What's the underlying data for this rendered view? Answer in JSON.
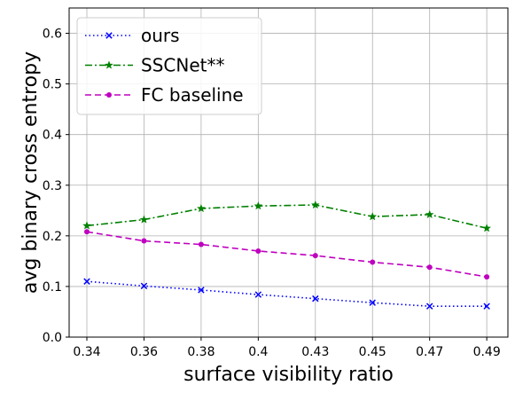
{
  "chart_data": {
    "type": "line",
    "xlabel": "surface visibility ratio",
    "ylabel": "avg binary cross entropy",
    "categories": [
      "0.34",
      "0.36",
      "0.38",
      "0.4",
      "0.43",
      "0.45",
      "0.47",
      "0.49"
    ],
    "ylim": [
      0.0,
      0.65
    ],
    "yticks": [
      "0.0",
      "0.1",
      "0.2",
      "0.3",
      "0.4",
      "0.5",
      "0.6"
    ],
    "grid": true,
    "legend_position": "top-left",
    "series": [
      {
        "name": "ours",
        "color": "#0000ff",
        "linestyle": "dotted",
        "marker": "x",
        "values": [
          0.11,
          0.101,
          0.093,
          0.084,
          0.076,
          0.068,
          0.061,
          0.061
        ]
      },
      {
        "name": "SSCNet**",
        "color": "#008000",
        "linestyle": "dashdot",
        "marker": "star",
        "values": [
          0.22,
          0.232,
          0.254,
          0.259,
          0.261,
          0.238,
          0.242,
          0.215
        ]
      },
      {
        "name": "FC baseline",
        "color": "#bf00bf",
        "linestyle": "dashed",
        "marker": "circle",
        "values": [
          0.208,
          0.19,
          0.183,
          0.17,
          0.161,
          0.148,
          0.138,
          0.119
        ]
      }
    ]
  }
}
